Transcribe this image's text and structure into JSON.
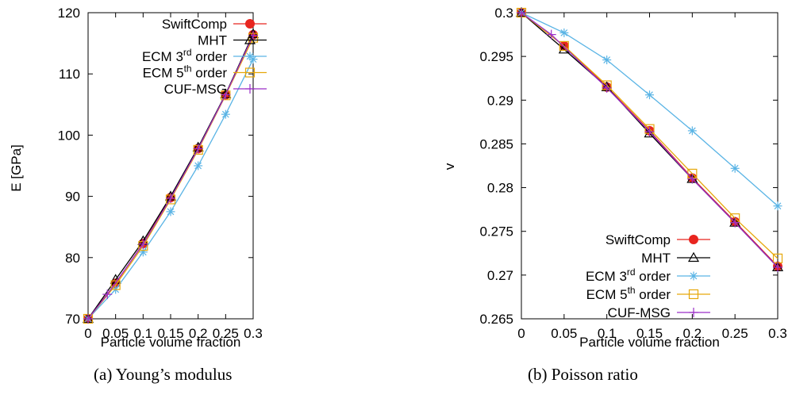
{
  "chart_data": [
    {
      "type": "line",
      "caption": "(a)  Young’s modulus",
      "xlabel": "Particle volume fraction",
      "ylabel": "E [GPa]",
      "xlim": [
        0,
        0.3
      ],
      "ylim": [
        70,
        120
      ],
      "xticks": [
        "0",
        "0.05",
        "0.1",
        "0.15",
        "0.2",
        "0.25",
        "0.3"
      ],
      "yticks": [
        "70",
        "80",
        "90",
        "100",
        "110",
        "120"
      ],
      "grid": false,
      "legend_position": "top-left",
      "series": [
        {
          "name": "SwiftComp",
          "legend": {
            "pre": "SwiftComp",
            "sup": "",
            "post": ""
          },
          "color": "#e8251f",
          "marker": "filled-circle",
          "x": [
            0,
            0.05,
            0.1,
            0.15,
            0.2,
            0.25,
            0.3
          ],
          "y": [
            70.0,
            75.8,
            82.3,
            89.8,
            97.8,
            106.6,
            116.4
          ]
        },
        {
          "name": "MHT",
          "legend": {
            "pre": "MHT",
            "sup": "",
            "post": ""
          },
          "color": "#000000",
          "marker": "triangle",
          "x": [
            0,
            0.05,
            0.1,
            0.15,
            0.2,
            0.25,
            0.3
          ],
          "y": [
            70.0,
            76.4,
            82.7,
            90.0,
            98.0,
            106.7,
            116.5
          ]
        },
        {
          "name": "ECM 3rd order",
          "legend": {
            "pre": "ECM 3",
            "sup": "rd",
            "post": " order"
          },
          "color": "#5ab4e5",
          "marker": "asterisk",
          "x": [
            0,
            0.05,
            0.1,
            0.15,
            0.2,
            0.25,
            0.3
          ],
          "y": [
            70.0,
            74.8,
            80.9,
            87.5,
            95.0,
            103.4,
            112.4
          ]
        },
        {
          "name": "ECM 5th order",
          "legend": {
            "pre": "ECM 5",
            "sup": "th",
            "post": " order"
          },
          "color": "#e6a70a",
          "marker": "open-square",
          "x": [
            0,
            0.05,
            0.1,
            0.15,
            0.2,
            0.25,
            0.3
          ],
          "y": [
            70.0,
            75.5,
            81.9,
            89.5,
            97.6,
            106.5,
            115.9
          ]
        },
        {
          "name": "CUF-MSG",
          "legend": {
            "pre": "CUF-MSG",
            "sup": "",
            "post": ""
          },
          "color": "#9b2ec8",
          "marker": "plus",
          "x": [
            0,
            0.035,
            0.1,
            0.15,
            0.2,
            0.25,
            0.3
          ],
          "y": [
            70.0,
            74.0,
            82.2,
            89.7,
            97.8,
            106.6,
            116.3
          ]
        }
      ]
    },
    {
      "type": "line",
      "caption": "(b)  Poisson ratio",
      "xlabel": "Particle volume fraction",
      "ylabel": "v",
      "xlim": [
        0,
        0.3
      ],
      "ylim": [
        0.265,
        0.3
      ],
      "xticks": [
        "0",
        "0.05",
        "0.1",
        "0.15",
        "0.2",
        "0.25",
        "0.3"
      ],
      "yticks": [
        "0.265",
        "0.27",
        "0.275",
        "0.28",
        "0.285",
        "0.29",
        "0.295",
        "0.3"
      ],
      "grid": false,
      "legend_position": "bottom-left",
      "series": [
        {
          "name": "SwiftComp",
          "legend": {
            "pre": "SwiftComp",
            "sup": "",
            "post": ""
          },
          "color": "#e8251f",
          "marker": "filled-circle",
          "x": [
            0,
            0.05,
            0.1,
            0.15,
            0.2,
            0.25,
            0.3
          ],
          "y": [
            0.3,
            0.2962,
            0.2915,
            0.2865,
            0.2811,
            0.2761,
            0.271
          ]
        },
        {
          "name": "MHT",
          "legend": {
            "pre": "MHT",
            "sup": "",
            "post": ""
          },
          "color": "#000000",
          "marker": "triangle",
          "x": [
            0,
            0.05,
            0.1,
            0.15,
            0.2,
            0.25,
            0.3
          ],
          "y": [
            0.3,
            0.2958,
            0.2915,
            0.2862,
            0.281,
            0.276,
            0.2709
          ]
        },
        {
          "name": "ECM 3rd order",
          "legend": {
            "pre": "ECM 3",
            "sup": "rd",
            "post": " order"
          },
          "color": "#5ab4e5",
          "marker": "asterisk",
          "x": [
            0,
            0.05,
            0.1,
            0.15,
            0.2,
            0.25,
            0.3
          ],
          "y": [
            0.3,
            0.2977,
            0.2946,
            0.2906,
            0.2865,
            0.2822,
            0.2779
          ]
        },
        {
          "name": "ECM 5th order",
          "legend": {
            "pre": "ECM 5",
            "sup": "th",
            "post": " order"
          },
          "color": "#e6a70a",
          "marker": "open-square",
          "x": [
            0,
            0.05,
            0.1,
            0.15,
            0.2,
            0.25,
            0.3
          ],
          "y": [
            0.3,
            0.2962,
            0.2917,
            0.2867,
            0.2816,
            0.2765,
            0.2719
          ]
        },
        {
          "name": "CUF-MSG",
          "legend": {
            "pre": "CUF-MSG",
            "sup": "",
            "post": ""
          },
          "color": "#9b2ec8",
          "marker": "plus",
          "x": [
            0,
            0.035,
            0.1,
            0.15,
            0.2,
            0.25,
            0.3
          ],
          "y": [
            0.3,
            0.2975,
            0.2914,
            0.2864,
            0.281,
            0.276,
            0.2709
          ]
        }
      ]
    }
  ]
}
